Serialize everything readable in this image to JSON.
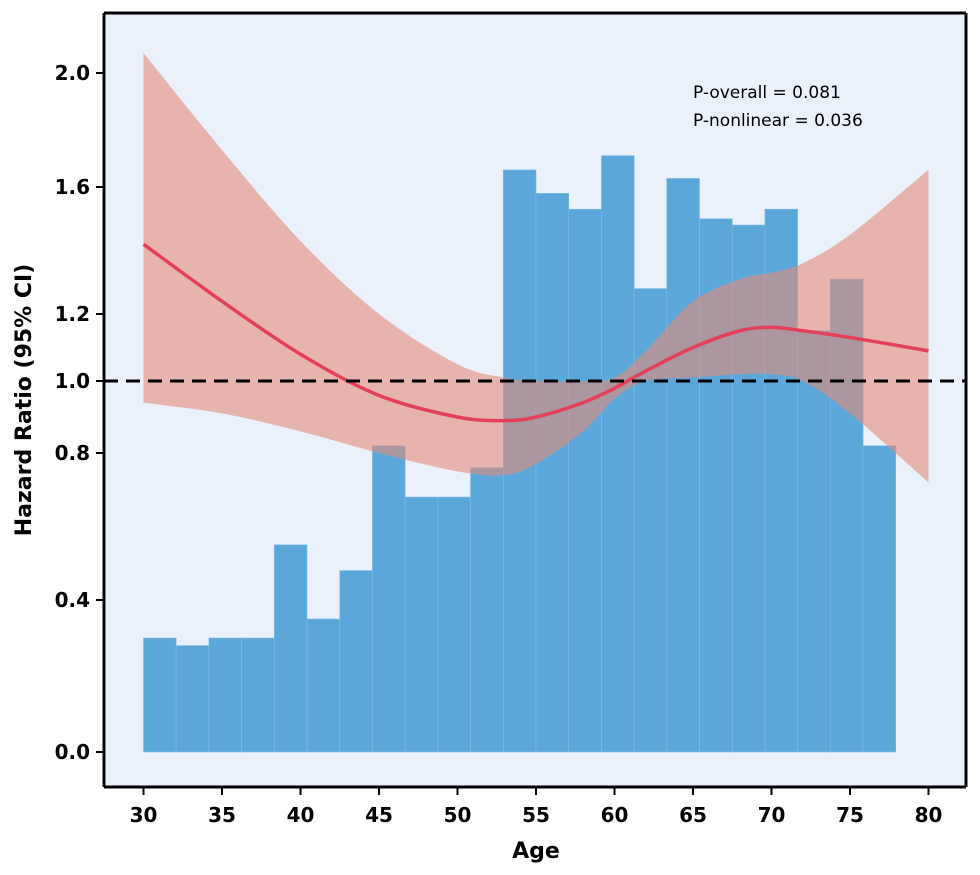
{
  "chart_data": {
    "type": "line",
    "xlabel": "Age",
    "ylabel": "Hazard Ratio (95% CI)",
    "xlim": [
      27.5,
      82.5
    ],
    "x_ticks": [
      "30",
      "35",
      "40",
      "45",
      "50",
      "55",
      "60",
      "65",
      "70",
      "75",
      "80"
    ],
    "y_ticks": [
      "0.0",
      "0.4",
      "0.8",
      "1.0",
      "1.2",
      "1.6",
      "2.0"
    ],
    "y_tick_values": [
      0.0,
      0.4,
      0.8,
      1.0,
      1.2,
      1.6,
      2.0
    ],
    "reference_line": 1.0,
    "annotations": [
      "P-overall = 0.081",
      "P-nonlinear = 0.036"
    ],
    "grid": false,
    "colors": {
      "background": "#eaf1fb",
      "histogram": "#5ba7da",
      "curve": "#e4405a",
      "ci_band": "#e38a7a",
      "reference": "#000000"
    },
    "histogram": {
      "bin_width": 2.083,
      "bin_starts": [
        30.0,
        32.08,
        34.17,
        36.25,
        38.33,
        40.42,
        42.5,
        44.58,
        46.67,
        48.75,
        50.83,
        52.92,
        55.0,
        57.08,
        59.17,
        61.25,
        63.33,
        65.42,
        67.5,
        69.58,
        71.67,
        73.75,
        75.83
      ],
      "heights": [
        0.3,
        0.28,
        0.3,
        0.3,
        0.55,
        0.35,
        0.48,
        0.82,
        0.68,
        0.68,
        0.76,
        1.66,
        1.58,
        1.53,
        1.71,
        1.28,
        1.63,
        1.5,
        1.48,
        1.53,
        1.15,
        1.31,
        0.82
      ]
    },
    "series": [
      {
        "x": [
          30,
          35,
          40,
          45,
          50,
          53,
          55,
          58,
          60,
          62,
          65,
          68,
          70,
          72,
          75,
          80
        ],
        "values": [
          1.42,
          1.24,
          1.08,
          0.96,
          0.9,
          0.89,
          0.9,
          0.94,
          0.98,
          1.03,
          1.1,
          1.15,
          1.16,
          1.15,
          1.13,
          1.09
        ]
      }
    ],
    "ci_lower": [
      0.94,
      0.91,
      0.86,
      0.8,
      0.75,
      0.74,
      0.77,
      0.86,
      0.95,
      1.0,
      1.01,
      1.02,
      1.02,
      1.0,
      0.91,
      0.72
    ],
    "ci_upper": [
      2.07,
      1.73,
      1.43,
      1.2,
      1.05,
      1.01,
      1.0,
      1.0,
      1.01,
      1.09,
      1.24,
      1.31,
      1.33,
      1.36,
      1.45,
      1.66
    ]
  }
}
